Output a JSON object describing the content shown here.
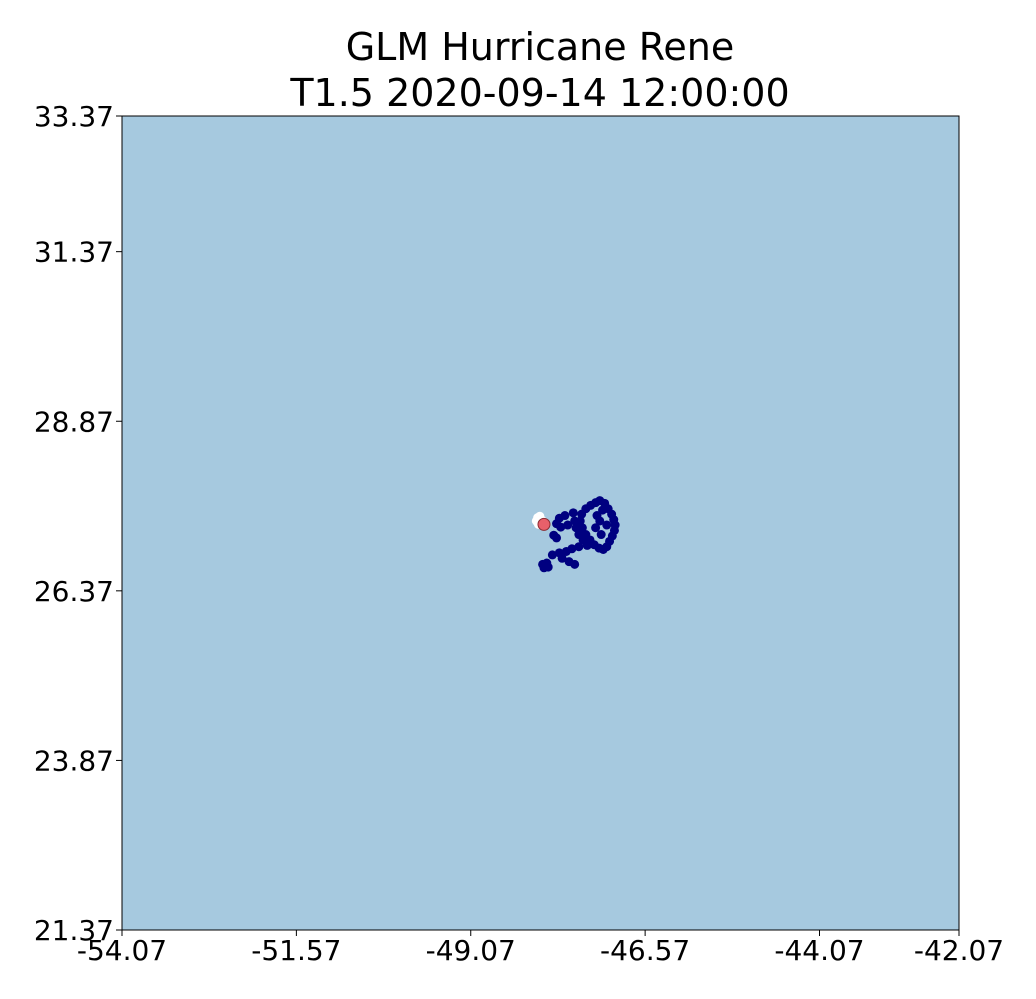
{
  "chart_data": {
    "type": "scatter",
    "title": "GLM Hurricane Rene",
    "subtitle": "T1.5 2020-09-14 12:00:00",
    "xlabel": "",
    "ylabel": "",
    "xlim": [
      -54.07,
      -42.07
    ],
    "ylim": [
      21.37,
      33.37
    ],
    "x_ticks": [
      -54.07,
      -51.57,
      -49.07,
      -46.57,
      -44.07,
      -42.07
    ],
    "x_tick_labels": [
      "-54.07",
      "-51.57",
      "-49.07",
      "-46.57",
      "-44.07",
      "-42.07"
    ],
    "y_ticks": [
      33.37,
      31.37,
      28.87,
      26.37,
      23.87,
      21.37
    ],
    "y_tick_labels": [
      "33.37",
      "31.37",
      "28.87",
      "26.37",
      "23.87",
      "21.37"
    ],
    "grid": false,
    "legend": "none",
    "background_color": "#a6c9df",
    "series": [
      {
        "color": "#ffffff",
        "points": [
          [
            -48.13,
            27.4
          ],
          [
            -48.11,
            27.45
          ],
          [
            -48.08,
            27.47
          ],
          [
            -48.1,
            27.43
          ],
          [
            -48.06,
            27.42
          ],
          [
            -48.12,
            27.39
          ],
          [
            -48.07,
            27.38
          ],
          [
            -48.09,
            27.36
          ],
          [
            -48.04,
            27.4
          ],
          [
            -48.1,
            27.35
          ]
        ]
      },
      {
        "color": "#000080",
        "points": [
          [
            -47.22,
            27.7
          ],
          [
            -47.15,
            27.66
          ],
          [
            -47.1,
            27.58
          ],
          [
            -47.05,
            27.5
          ],
          [
            -47.02,
            27.42
          ],
          [
            -47.0,
            27.34
          ],
          [
            -47.01,
            27.26
          ],
          [
            -47.04,
            27.18
          ],
          [
            -47.08,
            27.1
          ],
          [
            -47.12,
            27.02
          ],
          [
            -47.17,
            26.98
          ],
          [
            -47.23,
            27.0
          ],
          [
            -47.3,
            27.05
          ],
          [
            -47.36,
            27.12
          ],
          [
            -47.42,
            27.2
          ],
          [
            -47.47,
            27.3
          ],
          [
            -47.5,
            27.4
          ],
          [
            -47.48,
            27.5
          ],
          [
            -47.42,
            27.58
          ],
          [
            -47.35,
            27.63
          ],
          [
            -47.28,
            27.67
          ],
          [
            -47.6,
            27.52
          ],
          [
            -47.72,
            27.48
          ],
          [
            -47.8,
            27.44
          ],
          [
            -47.84,
            27.36
          ],
          [
            -47.78,
            27.31
          ],
          [
            -47.68,
            27.34
          ],
          [
            -47.58,
            27.4
          ],
          [
            -47.56,
            27.3
          ],
          [
            -47.52,
            27.2
          ],
          [
            -47.46,
            27.12
          ],
          [
            -47.4,
            27.04
          ],
          [
            -47.52,
            27.02
          ],
          [
            -47.62,
            26.99
          ],
          [
            -47.7,
            26.95
          ],
          [
            -47.8,
            26.93
          ],
          [
            -47.9,
            26.9
          ],
          [
            -47.76,
            26.85
          ],
          [
            -47.66,
            26.8
          ],
          [
            -47.58,
            26.76
          ],
          [
            -48.02,
            26.71
          ],
          [
            -47.96,
            26.72
          ],
          [
            -47.98,
            26.78
          ],
          [
            -48.04,
            26.76
          ],
          [
            -47.88,
            27.19
          ],
          [
            -47.84,
            27.15
          ],
          [
            -47.22,
            27.4
          ],
          [
            -47.28,
            27.3
          ],
          [
            -47.2,
            27.2
          ],
          [
            -47.26,
            27.48
          ],
          [
            -47.12,
            27.34
          ],
          [
            -47.18,
            27.56
          ]
        ]
      },
      {
        "color": "#e8606a",
        "points": [
          [
            -48.02,
            27.35
          ]
        ]
      }
    ]
  }
}
